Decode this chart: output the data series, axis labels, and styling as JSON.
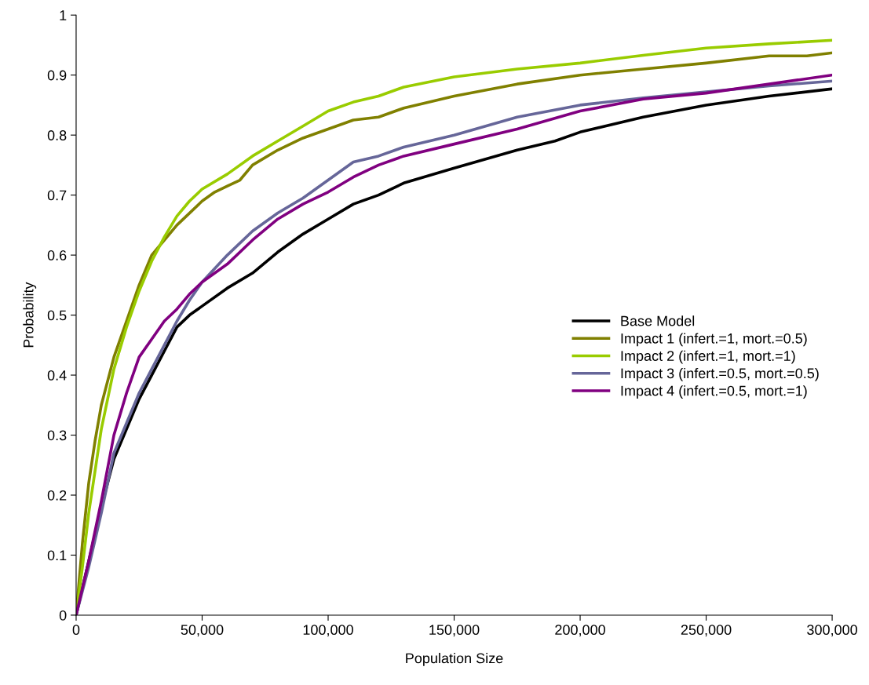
{
  "chart_data": {
    "type": "line",
    "xlabel": "Population Size",
    "ylabel": "Probability",
    "xlim": [
      0,
      300000
    ],
    "ylim": [
      0,
      1
    ],
    "xticks": [
      {
        "value": 0,
        "label": "0"
      },
      {
        "value": 50000,
        "label": "50,000"
      },
      {
        "value": 100000,
        "label": "100,000"
      },
      {
        "value": 150000,
        "label": "150,000"
      },
      {
        "value": 200000,
        "label": "200,000"
      },
      {
        "value": 250000,
        "label": "250,000"
      },
      {
        "value": 300000,
        "label": "300,000"
      }
    ],
    "yticks": [
      0,
      0.1,
      0.2,
      0.3,
      0.4,
      0.5,
      0.6,
      0.7,
      0.8,
      0.9,
      1
    ],
    "grid": false,
    "legend": "right",
    "line_style": "solid",
    "marker": "none",
    "series": [
      {
        "name": "Base Model",
        "color": "#000000",
        "x": [
          0,
          10000,
          15000,
          20000,
          25000,
          30000,
          35000,
          40000,
          45000,
          50000,
          60000,
          70000,
          80000,
          90000,
          100000,
          110000,
          120000,
          130000,
          150000,
          175000,
          190000,
          200000,
          225000,
          250000,
          275000,
          300000
        ],
        "values": [
          0,
          0.18,
          0.26,
          0.31,
          0.36,
          0.4,
          0.44,
          0.48,
          0.5,
          0.515,
          0.545,
          0.57,
          0.605,
          0.635,
          0.66,
          0.685,
          0.7,
          0.72,
          0.745,
          0.775,
          0.79,
          0.805,
          0.83,
          0.85,
          0.865,
          0.877
        ]
      },
      {
        "name": "Impact 1 (infert.=1, mort.=0.5)",
        "color": "#808000",
        "x": [
          0,
          2500,
          5000,
          7500,
          10000,
          15000,
          20000,
          25000,
          30000,
          35000,
          40000,
          45000,
          50000,
          55000,
          60000,
          65000,
          70000,
          80000,
          90000,
          100000,
          110000,
          120000,
          130000,
          150000,
          175000,
          200000,
          225000,
          250000,
          275000,
          290000,
          300000
        ],
        "values": [
          0,
          0.12,
          0.22,
          0.29,
          0.35,
          0.43,
          0.49,
          0.55,
          0.6,
          0.625,
          0.65,
          0.67,
          0.69,
          0.705,
          0.715,
          0.725,
          0.75,
          0.775,
          0.795,
          0.81,
          0.825,
          0.83,
          0.845,
          0.865,
          0.885,
          0.9,
          0.91,
          0.92,
          0.932,
          0.932,
          0.937
        ]
      },
      {
        "name": "Impact 2 (infert.=1, mort.=1)",
        "color": "#99cc00",
        "x": [
          0,
          2500,
          5000,
          7500,
          10000,
          15000,
          20000,
          25000,
          30000,
          35000,
          40000,
          45000,
          50000,
          60000,
          70000,
          80000,
          90000,
          100000,
          110000,
          120000,
          130000,
          150000,
          175000,
          200000,
          225000,
          250000,
          275000,
          300000
        ],
        "values": [
          0,
          0.08,
          0.17,
          0.24,
          0.31,
          0.41,
          0.48,
          0.54,
          0.59,
          0.63,
          0.665,
          0.69,
          0.71,
          0.735,
          0.765,
          0.79,
          0.815,
          0.84,
          0.855,
          0.865,
          0.88,
          0.897,
          0.91,
          0.92,
          0.933,
          0.945,
          0.952,
          0.958
        ]
      },
      {
        "name": "Impact 3 (infert.=0.5, mort.=0.5)",
        "color": "#666699",
        "x": [
          0,
          5000,
          10000,
          15000,
          20000,
          25000,
          30000,
          35000,
          40000,
          45000,
          50000,
          60000,
          70000,
          80000,
          90000,
          100000,
          110000,
          120000,
          130000,
          150000,
          175000,
          200000,
          225000,
          250000,
          275000,
          300000
        ],
        "values": [
          0,
          0.08,
          0.17,
          0.27,
          0.32,
          0.37,
          0.41,
          0.45,
          0.49,
          0.525,
          0.555,
          0.6,
          0.64,
          0.67,
          0.695,
          0.725,
          0.755,
          0.765,
          0.78,
          0.8,
          0.83,
          0.85,
          0.862,
          0.872,
          0.882,
          0.89
        ]
      },
      {
        "name": "Impact 4 (infert.=0.5, mort.=1)",
        "color": "#800080",
        "x": [
          0,
          5000,
          10000,
          15000,
          20000,
          25000,
          30000,
          35000,
          40000,
          45000,
          50000,
          60000,
          70000,
          80000,
          90000,
          100000,
          110000,
          120000,
          130000,
          150000,
          175000,
          200000,
          225000,
          250000,
          275000,
          300000
        ],
        "values": [
          0,
          0.09,
          0.19,
          0.3,
          0.37,
          0.43,
          0.46,
          0.49,
          0.51,
          0.535,
          0.555,
          0.585,
          0.625,
          0.66,
          0.685,
          0.705,
          0.73,
          0.75,
          0.765,
          0.785,
          0.81,
          0.84,
          0.86,
          0.87,
          0.885,
          0.9
        ]
      }
    ]
  }
}
